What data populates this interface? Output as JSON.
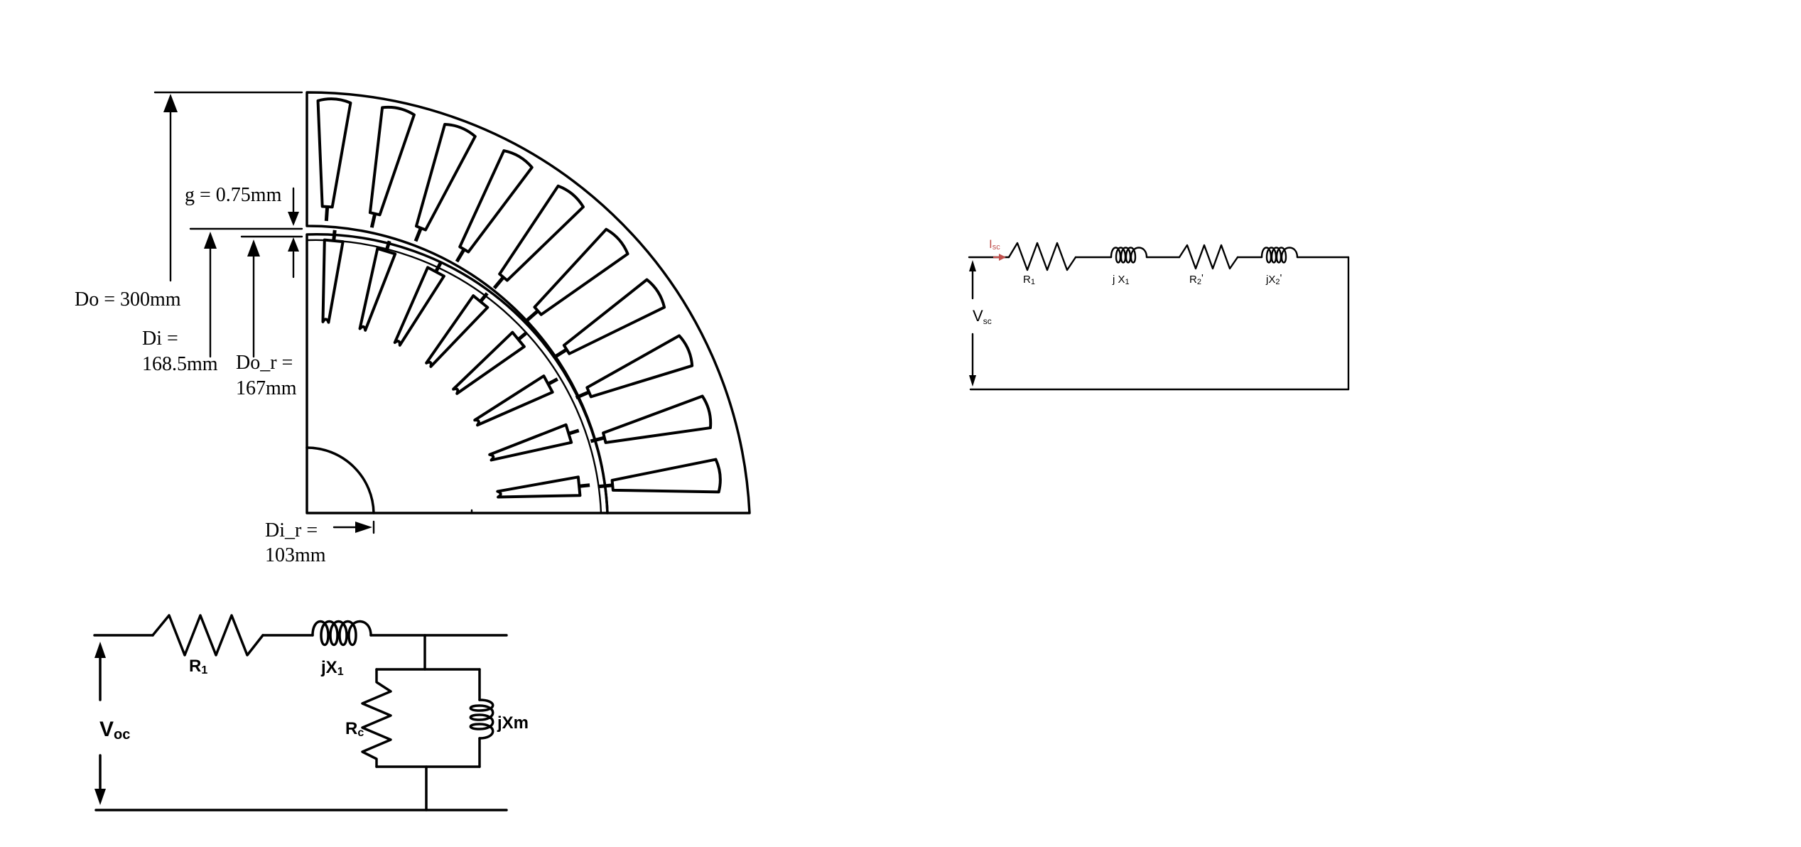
{
  "motor_section": {
    "outer_diameter_label": "Do = 300mm",
    "air_gap_label": "g = 0.75mm",
    "stator_inner_label_line1": "Di =",
    "stator_inner_label_line2": "168.5mm",
    "rotor_outer_label_line1": "Do_r =",
    "rotor_outer_label_line2": "167mm",
    "rotor_inner_label_line1": "Di_r =",
    "rotor_inner_label_line2": "103mm",
    "stator_slot_count_in_quadrant": 10,
    "rotor_slot_count_in_quadrant": 8
  },
  "open_circuit_test": {
    "voltage_label": "V",
    "voltage_subscript": "oc",
    "r1_label": "R",
    "r1_subscript": "1",
    "x1_label": "jX",
    "x1_subscript": "1",
    "rc_label": "R",
    "rc_subscript": "c",
    "xm_label": "jXm"
  },
  "short_circuit_test": {
    "current_label": "I",
    "current_subscript": "sc",
    "voltage_label": "V",
    "voltage_subscript": "sc",
    "r1_label": "R",
    "r1_subscript": "1",
    "x1_label": "j X",
    "x1_subscript": "1",
    "r2_label": "R",
    "r2_subscript": "2",
    "r2_prime": "'",
    "x2_label": "jX",
    "x2_subscript": "2",
    "x2_prime": "'",
    "current_color": "#c0504d"
  }
}
